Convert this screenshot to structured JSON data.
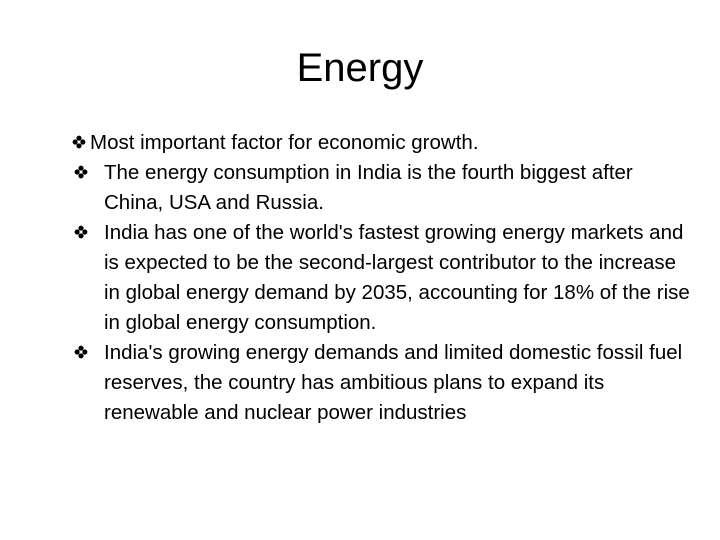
{
  "slide": {
    "title": "Energy",
    "bullet_icon": "diamond-bullet-icon",
    "bullets": [
      {
        "text": "Most important factor for economic growth."
      },
      {
        "text": "The energy consumption in India is the fourth biggest after China, USA and Russia."
      },
      {
        "text": "India has one of the world's fastest growing energy markets and is expected to be the second-largest contributor to the increase in global energy demand by 2035, accounting for 18% of the rise in global energy consumption."
      },
      {
        "text": "India's growing energy demands and limited domestic fossil fuel reserves, the country has ambitious plans to expand its renewable and nuclear power industries"
      }
    ]
  },
  "colors": {
    "text": "#000000",
    "background": "#ffffff"
  }
}
